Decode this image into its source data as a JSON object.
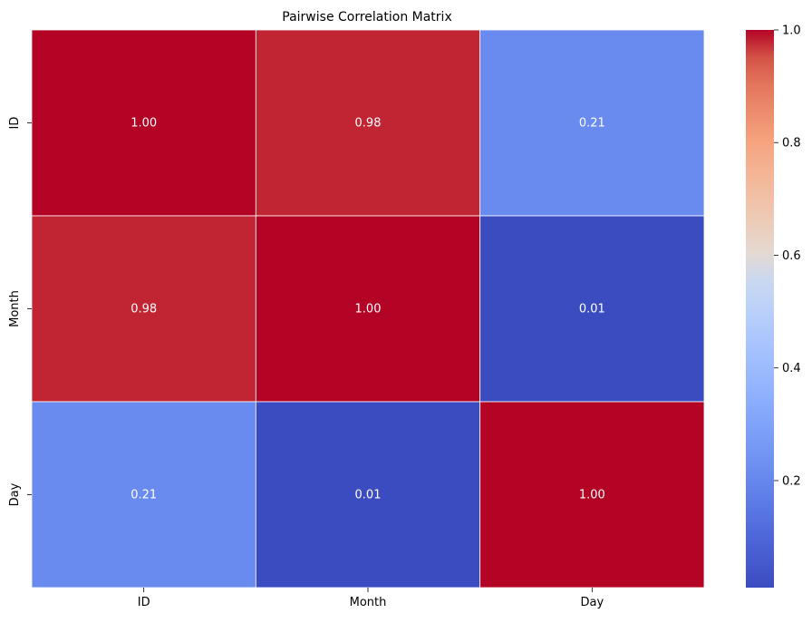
{
  "chart_data": {
    "type": "heatmap",
    "title": "Pairwise Correlation Matrix",
    "x_categories": [
      "ID",
      "Month",
      "Day"
    ],
    "y_categories": [
      "ID",
      "Month",
      "Day"
    ],
    "values": [
      [
        1.0,
        0.98,
        0.21
      ],
      [
        0.98,
        1.0,
        0.01
      ],
      [
        0.21,
        0.01,
        1.0
      ]
    ],
    "value_format": "0.00",
    "colormap": "coolwarm",
    "vmin": 0.01,
    "vmax": 1.0,
    "colorbar_ticks": [
      "0.2",
      "0.4",
      "0.6",
      "0.8",
      "1.0"
    ],
    "grid_line_color": "#ffffff",
    "annotation_color": "#ffffff"
  }
}
